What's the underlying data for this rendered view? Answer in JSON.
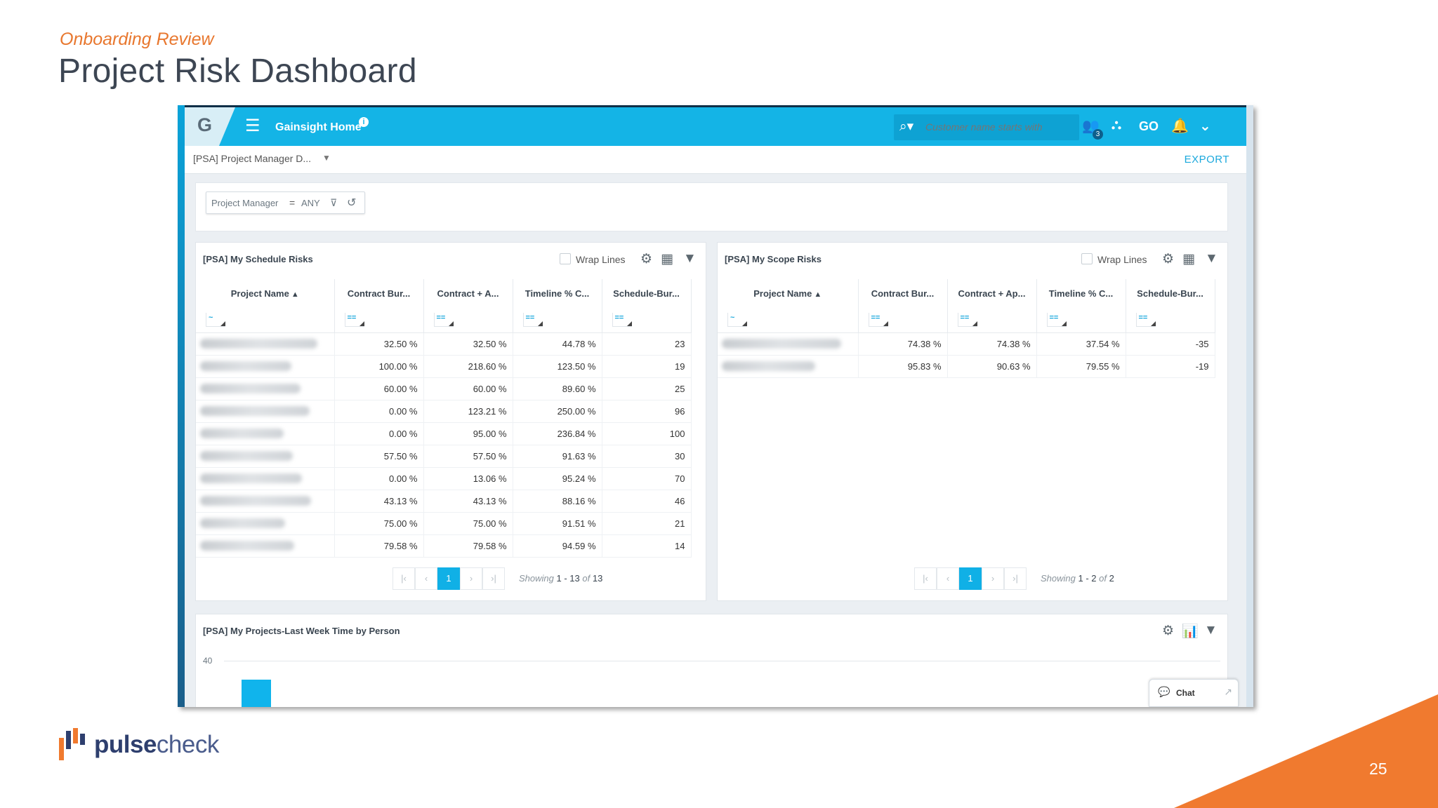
{
  "slide": {
    "subtitle": "Onboarding Review",
    "title": "Project Risk Dashboard",
    "page_number": "25",
    "brand": {
      "part1": "pulse",
      "part2": "check"
    },
    "accent_color": "#f07a2f"
  },
  "app": {
    "logo_letter": "G",
    "menu_icon": "hamburger-icon",
    "home_label": "Gainsight Home",
    "search_placeholder": "Customer name starts with",
    "go_label": "GO",
    "notification_badge": "3",
    "brand_color": "#14b4e6",
    "dashboard_selector": "[PSA] Project Manager D...",
    "export_label": "EXPORT"
  },
  "filter": {
    "label": "Project Manager",
    "operator": "=",
    "value": "ANY"
  },
  "schedule_widget": {
    "title": "[PSA] My Schedule Risks",
    "wrap_label": "Wrap Lines",
    "columns": [
      "Project Name",
      "Contract Bur...",
      "Contract + A...",
      "Timeline % C...",
      "Schedule-Bur..."
    ],
    "filter_ops": [
      "~",
      "==",
      "==",
      "==",
      "=="
    ],
    "rows": [
      [
        "",
        "32.50 %",
        "32.50 %",
        "44.78 %",
        "23"
      ],
      [
        "",
        "100.00 %",
        "218.60 %",
        "123.50 %",
        "19"
      ],
      [
        "",
        "60.00 %",
        "60.00 %",
        "89.60 %",
        "25"
      ],
      [
        "",
        "0.00 %",
        "123.21 %",
        "250.00 %",
        "96"
      ],
      [
        "",
        "0.00 %",
        "95.00 %",
        "236.84 %",
        "100"
      ],
      [
        "",
        "57.50 %",
        "57.50 %",
        "91.63 %",
        "30"
      ],
      [
        "",
        "0.00 %",
        "13.06 %",
        "95.24 %",
        "70"
      ],
      [
        "",
        "43.13 %",
        "43.13 %",
        "88.16 %",
        "46"
      ],
      [
        "",
        "75.00 %",
        "75.00 %",
        "91.51 %",
        "21"
      ],
      [
        "",
        "79.58 %",
        "79.58 %",
        "94.59 %",
        "14"
      ]
    ],
    "page": "1",
    "showing_prefix": "Showing",
    "showing_range": "1 - 13",
    "showing_of": "of",
    "showing_total": "13"
  },
  "scope_widget": {
    "title": "[PSA] My Scope Risks",
    "wrap_label": "Wrap Lines",
    "columns": [
      "Project Name",
      "Contract Bur...",
      "Contract + Ap...",
      "Timeline % C...",
      "Schedule-Bur..."
    ],
    "filter_ops": [
      "~",
      "==",
      "==",
      "==",
      "=="
    ],
    "rows": [
      [
        "",
        "74.38 %",
        "74.38 %",
        "37.54 %",
        "-35"
      ],
      [
        "",
        "95.83 %",
        "90.63 %",
        "79.55 %",
        "-19"
      ]
    ],
    "page": "1",
    "showing_prefix": "Showing",
    "showing_range": "1 - 2",
    "showing_of": "of",
    "showing_total": "2"
  },
  "time_widget": {
    "title": "[PSA] My Projects-Last Week Time by Person",
    "y_tick_top": "40"
  },
  "chat": {
    "label": "Chat"
  }
}
